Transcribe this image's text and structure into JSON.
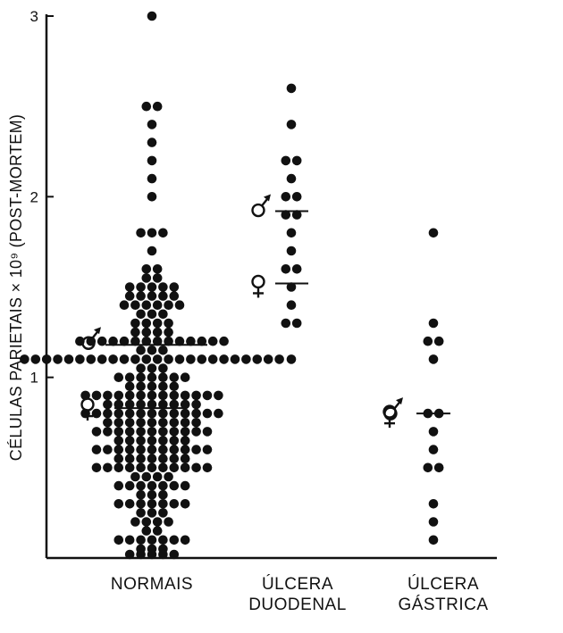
{
  "chart_data": {
    "type": "scatter",
    "ylabel": "CÉLULAS PARIETAIS × 10⁹ (POST-MORTEM)",
    "ylim": [
      0,
      3
    ],
    "yticks": [
      "1",
      "2",
      "3"
    ],
    "grid": false,
    "categories": [
      {
        "label_lines": [
          "NORMAIS"
        ]
      },
      {
        "label_lines": [
          "ÚLCERA",
          "DUODENAL"
        ]
      },
      {
        "label_lines": [
          "ÚLCERA",
          "GÁSTRICA"
        ]
      }
    ],
    "series": [
      {
        "values": [
          3.0,
          2.5,
          2.5,
          2.4,
          2.3,
          2.2,
          2.1,
          2.0,
          1.8,
          1.8,
          1.8,
          1.7,
          1.6,
          1.6,
          1.55,
          1.55,
          1.5,
          1.5,
          1.5,
          1.5,
          1.5,
          1.45,
          1.45,
          1.45,
          1.45,
          1.45,
          1.4,
          1.4,
          1.4,
          1.4,
          1.4,
          1.4,
          1.35,
          1.35,
          1.35,
          1.3,
          1.3,
          1.3,
          1.3,
          1.25,
          1.25,
          1.25,
          1.25,
          1.2,
          1.2,
          1.2,
          1.2,
          1.2,
          1.2,
          1.2,
          1.2,
          1.2,
          1.2,
          1.2,
          1.2,
          1.2,
          1.2,
          1.15,
          1.15,
          1.15,
          1.1,
          1.1,
          1.1,
          1.1,
          1.1,
          1.1,
          1.1,
          1.1,
          1.1,
          1.1,
          1.1,
          1.1,
          1.1,
          1.1,
          1.1,
          1.1,
          1.1,
          1.1,
          1.1,
          1.1,
          1.1,
          1.1,
          1.1,
          1.1,
          1.05,
          1.05,
          1.05,
          1.0,
          1.0,
          1.0,
          1.0,
          1.0,
          1.0,
          1.0,
          0.95,
          0.95,
          0.95,
          0.95,
          0.95,
          0.9,
          0.9,
          0.9,
          0.9,
          0.9,
          0.9,
          0.9,
          0.9,
          0.9,
          0.9,
          0.9,
          0.9,
          0.9,
          0.85,
          0.85,
          0.85,
          0.85,
          0.85,
          0.85,
          0.85,
          0.85,
          0.85,
          0.8,
          0.8,
          0.8,
          0.8,
          0.8,
          0.8,
          0.8,
          0.8,
          0.8,
          0.8,
          0.8,
          0.8,
          0.8,
          0.75,
          0.75,
          0.75,
          0.75,
          0.75,
          0.75,
          0.75,
          0.75,
          0.75,
          0.7,
          0.7,
          0.7,
          0.7,
          0.7,
          0.7,
          0.7,
          0.7,
          0.7,
          0.7,
          0.7,
          0.65,
          0.65,
          0.65,
          0.65,
          0.65,
          0.65,
          0.65,
          0.6,
          0.6,
          0.6,
          0.6,
          0.6,
          0.6,
          0.6,
          0.6,
          0.6,
          0.6,
          0.6,
          0.55,
          0.55,
          0.55,
          0.55,
          0.55,
          0.55,
          0.55,
          0.5,
          0.5,
          0.5,
          0.5,
          0.5,
          0.5,
          0.5,
          0.5,
          0.5,
          0.5,
          0.5,
          0.45,
          0.45,
          0.45,
          0.45,
          0.4,
          0.4,
          0.4,
          0.4,
          0.4,
          0.4,
          0.4,
          0.35,
          0.35,
          0.35,
          0.3,
          0.3,
          0.3,
          0.3,
          0.3,
          0.3,
          0.3,
          0.25,
          0.25,
          0.25,
          0.2,
          0.2,
          0.2,
          0.2,
          0.15,
          0.15,
          0.1,
          0.1,
          0.1,
          0.1,
          0.1,
          0.1,
          0.1,
          0.05,
          0.05,
          0.05,
          0.02,
          0.02,
          0.02,
          0.02,
          0.02
        ],
        "male_mean": 1.18,
        "female_mean": 0.83
      },
      {
        "values": [
          2.6,
          2.4,
          2.2,
          2.2,
          2.1,
          2.0,
          2.0,
          1.9,
          1.9,
          1.8,
          1.7,
          1.6,
          1.6,
          1.5,
          1.4,
          1.3,
          1.3,
          1.1
        ],
        "male_mean": 1.92,
        "female_mean": 1.52
      },
      {
        "values": [
          1.8,
          1.3,
          1.2,
          1.2,
          1.1,
          0.8,
          0.8,
          0.7,
          0.6,
          0.5,
          0.5,
          0.3,
          0.2,
          0.1
        ],
        "male_mean": 0.8,
        "female_mean": null
      }
    ],
    "point_color": "#111111"
  }
}
